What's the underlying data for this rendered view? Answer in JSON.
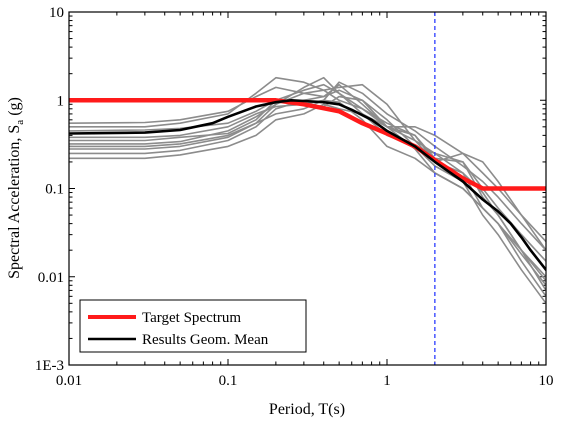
{
  "chart_data": {
    "type": "line",
    "xscale": "log",
    "yscale": "log",
    "xlim": [
      0.01,
      10
    ],
    "ylim": [
      0.001,
      10
    ],
    "xlabel": "Period, T(s)",
    "ylabel": "Spectral Acceleration, S",
    "ylabel_subscript": "a",
    "ylabel_suffix": " (g)",
    "x_tick_labels": [
      {
        "value": 0.01,
        "label": "0.01"
      },
      {
        "value": 0.1,
        "label": "0.1"
      },
      {
        "value": 1,
        "label": "1"
      },
      {
        "value": 10,
        "label": "10"
      }
    ],
    "y_tick_labels": [
      {
        "value": 0.001,
        "label": "1E-3"
      },
      {
        "value": 0.01,
        "label": "0.01"
      },
      {
        "value": 0.1,
        "label": "0.1"
      },
      {
        "value": 1,
        "label": "1"
      },
      {
        "value": 10,
        "label": "10"
      }
    ],
    "vertical_reference": {
      "x": 2.0,
      "color": "#2a3cff",
      "style": "dashed"
    },
    "legend_position": "bottom-left",
    "legend": [
      {
        "name": "Target Spectrum",
        "color": "#ff1a1a"
      },
      {
        "name": "Results Geom. Mean",
        "color": "#000000"
      }
    ],
    "series": [
      {
        "name": "Target Spectrum",
        "color": "#ff1a1a",
        "role": "target",
        "x": [
          0.01,
          0.2,
          0.3,
          0.5,
          0.7,
          1.0,
          1.5,
          2.0,
          3.0,
          4.0,
          10.0
        ],
        "y": [
          1.0,
          1.0,
          0.9,
          0.75,
          0.55,
          0.42,
          0.3,
          0.21,
          0.13,
          0.1,
          0.1
        ]
      },
      {
        "name": "Results Geom. Mean",
        "color": "#000000",
        "role": "mean",
        "x": [
          0.01,
          0.03,
          0.05,
          0.08,
          0.1,
          0.15,
          0.2,
          0.25,
          0.3,
          0.4,
          0.5,
          0.6,
          0.8,
          1.0,
          1.5,
          2.0,
          3.0,
          4.0,
          5.0,
          6.0,
          7.0,
          8.0,
          10.0
        ],
        "y": [
          0.42,
          0.43,
          0.46,
          0.55,
          0.65,
          0.85,
          0.95,
          1.0,
          0.98,
          0.95,
          0.9,
          0.78,
          0.6,
          0.45,
          0.3,
          0.2,
          0.12,
          0.075,
          0.055,
          0.04,
          0.028,
          0.02,
          0.012
        ]
      },
      {
        "name": "record-1",
        "color": "#8c8c8c",
        "role": "record",
        "x": [
          0.01,
          0.03,
          0.05,
          0.1,
          0.15,
          0.2,
          0.3,
          0.4,
          0.5,
          0.7,
          1,
          1.5,
          2,
          3,
          4,
          5,
          7,
          10
        ],
        "y": [
          0.55,
          0.56,
          0.6,
          0.75,
          1.1,
          1.4,
          1.2,
          1.1,
          1.5,
          0.9,
          0.5,
          0.4,
          0.22,
          0.2,
          0.08,
          0.05,
          0.02,
          0.009
        ]
      },
      {
        "name": "record-2",
        "color": "#8c8c8c",
        "role": "record",
        "x": [
          0.01,
          0.03,
          0.05,
          0.1,
          0.15,
          0.2,
          0.3,
          0.4,
          0.5,
          0.7,
          1,
          1.5,
          2,
          3,
          4,
          5,
          7,
          10
        ],
        "y": [
          0.5,
          0.5,
          0.55,
          0.7,
          1.2,
          1.8,
          1.6,
          1.3,
          1.0,
          0.8,
          0.5,
          0.35,
          0.25,
          0.15,
          0.06,
          0.04,
          0.015,
          0.006
        ]
      },
      {
        "name": "record-3",
        "color": "#8c8c8c",
        "role": "record",
        "x": [
          0.01,
          0.03,
          0.05,
          0.1,
          0.15,
          0.2,
          0.3,
          0.4,
          0.5,
          0.7,
          1,
          1.5,
          2,
          3,
          4,
          5,
          7,
          10
        ],
        "y": [
          0.35,
          0.35,
          0.38,
          0.42,
          0.6,
          1.0,
          1.3,
          1.5,
          1.2,
          0.8,
          0.55,
          0.4,
          0.2,
          0.25,
          0.2,
          0.12,
          0.05,
          0.02
        ]
      },
      {
        "name": "record-4",
        "color": "#8c8c8c",
        "role": "record",
        "x": [
          0.01,
          0.03,
          0.05,
          0.1,
          0.15,
          0.2,
          0.3,
          0.4,
          0.5,
          0.7,
          1,
          1.5,
          2,
          3,
          4,
          5,
          7,
          10
        ],
        "y": [
          0.25,
          0.25,
          0.27,
          0.35,
          0.5,
          0.8,
          1.0,
          1.1,
          1.3,
          1.0,
          0.6,
          0.3,
          0.18,
          0.12,
          0.05,
          0.03,
          0.012,
          0.005
        ]
      },
      {
        "name": "record-5",
        "color": "#8c8c8c",
        "role": "record",
        "x": [
          0.01,
          0.03,
          0.05,
          0.1,
          0.15,
          0.2,
          0.3,
          0.4,
          0.5,
          0.7,
          1,
          1.5,
          2,
          3,
          4,
          5,
          7,
          10
        ],
        "y": [
          0.3,
          0.3,
          0.32,
          0.4,
          0.55,
          0.7,
          0.8,
          1.0,
          1.6,
          1.2,
          0.7,
          0.45,
          0.3,
          0.18,
          0.12,
          0.08,
          0.04,
          0.02
        ]
      },
      {
        "name": "record-6",
        "color": "#8c8c8c",
        "role": "record",
        "x": [
          0.01,
          0.03,
          0.05,
          0.1,
          0.15,
          0.2,
          0.3,
          0.4,
          0.5,
          0.7,
          1,
          1.5,
          2,
          3,
          4,
          5,
          7,
          10
        ],
        "y": [
          0.45,
          0.46,
          0.48,
          0.55,
          0.75,
          1.0,
          0.9,
          0.85,
          1.1,
          1.0,
          0.5,
          0.28,
          0.15,
          0.1,
          0.06,
          0.04,
          0.018,
          0.008
        ]
      },
      {
        "name": "record-7",
        "color": "#8c8c8c",
        "role": "record",
        "x": [
          0.01,
          0.03,
          0.05,
          0.1,
          0.15,
          0.2,
          0.3,
          0.4,
          0.5,
          0.7,
          1,
          1.5,
          2,
          3,
          4,
          5,
          7,
          10
        ],
        "y": [
          0.22,
          0.22,
          0.24,
          0.3,
          0.4,
          0.6,
          0.7,
          0.9,
          0.8,
          0.7,
          0.5,
          0.5,
          0.4,
          0.25,
          0.15,
          0.1,
          0.05,
          0.025
        ]
      },
      {
        "name": "record-8",
        "color": "#8c8c8c",
        "role": "record",
        "x": [
          0.01,
          0.03,
          0.05,
          0.1,
          0.15,
          0.2,
          0.3,
          0.4,
          0.5,
          0.7,
          1,
          1.5,
          2,
          3,
          4,
          5,
          7,
          10
        ],
        "y": [
          0.28,
          0.28,
          0.3,
          0.38,
          0.55,
          0.9,
          1.4,
          1.8,
          1.2,
          0.7,
          0.4,
          0.3,
          0.25,
          0.2,
          0.1,
          0.06,
          0.03,
          0.015
        ]
      },
      {
        "name": "record-9",
        "color": "#8c8c8c",
        "role": "record",
        "x": [
          0.01,
          0.03,
          0.05,
          0.1,
          0.15,
          0.2,
          0.3,
          0.4,
          0.5,
          0.7,
          1,
          1.5,
          2,
          3,
          4,
          5,
          7,
          10
        ],
        "y": [
          0.32,
          0.32,
          0.34,
          0.45,
          0.65,
          0.9,
          1.2,
          1.3,
          1.4,
          1.5,
          0.9,
          0.35,
          0.2,
          0.15,
          0.09,
          0.05,
          0.02,
          0.01
        ]
      },
      {
        "name": "record-10",
        "color": "#8c8c8c",
        "role": "record",
        "x": [
          0.01,
          0.03,
          0.05,
          0.1,
          0.15,
          0.2,
          0.3,
          0.4,
          0.5,
          0.7,
          1,
          1.5,
          2,
          3,
          4,
          5,
          7,
          10
        ],
        "y": [
          0.38,
          0.38,
          0.4,
          0.5,
          0.7,
          0.85,
          0.9,
          1.0,
          0.95,
          0.6,
          0.3,
          0.22,
          0.15,
          0.1,
          0.06,
          0.04,
          0.02,
          0.007
        ]
      }
    ]
  }
}
